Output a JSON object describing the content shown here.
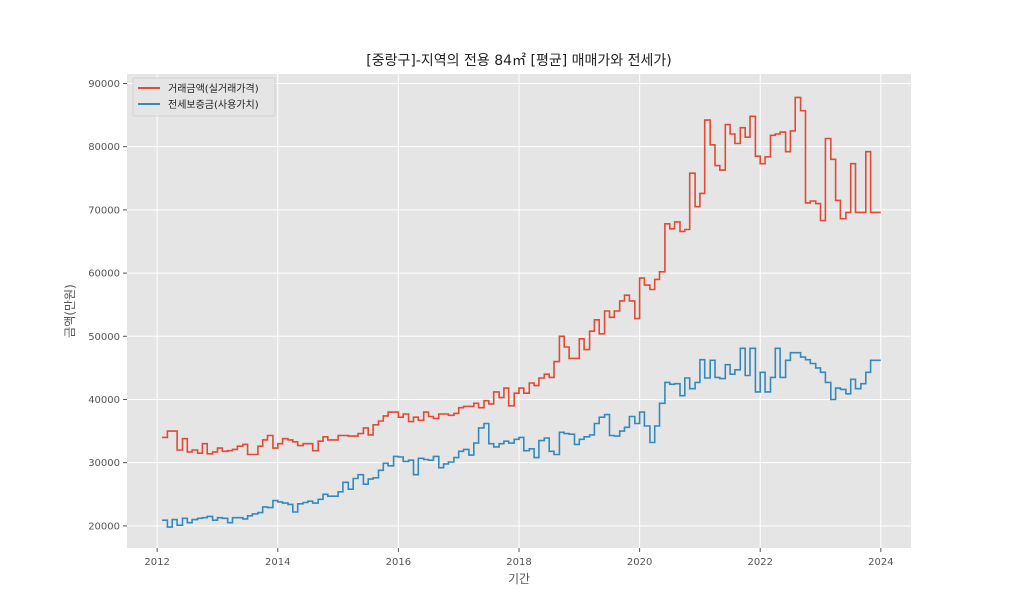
{
  "chart_data": {
    "type": "line",
    "step": true,
    "title": "[중랑구]-지역의 전용 84㎡ [평균] 매매가와 전세가)",
    "xlabel": "기간",
    "ylabel": "금액(만원)",
    "xlim": [
      2011.5,
      2024.5
    ],
    "ylim": [
      16500,
      91500
    ],
    "xticks": [
      2012,
      2014,
      2016,
      2018,
      2020,
      2022,
      2024
    ],
    "xtick_labels": [
      "2012",
      "2014",
      "2016",
      "2018",
      "2020",
      "2022",
      "2024"
    ],
    "yticks": [
      20000,
      30000,
      40000,
      50000,
      60000,
      70000,
      80000,
      90000
    ],
    "ytick_labels": [
      "20000",
      "30000",
      "40000",
      "50000",
      "60000",
      "70000",
      "80000",
      "90000"
    ],
    "grid": true,
    "legend_position": "top-left",
    "series": [
      {
        "name": "거래금액(실거래가격)",
        "color": "#E24A33",
        "points": [
          [
            2012.08,
            34000
          ],
          [
            2012.17,
            35000
          ],
          [
            2012.33,
            32000
          ],
          [
            2012.42,
            33800
          ],
          [
            2012.5,
            31700
          ],
          [
            2012.58,
            32000
          ],
          [
            2012.67,
            31500
          ],
          [
            2012.75,
            33000
          ],
          [
            2012.83,
            31400
          ],
          [
            2012.92,
            31700
          ],
          [
            2013.0,
            32300
          ],
          [
            2013.08,
            31800
          ],
          [
            2013.17,
            31900
          ],
          [
            2013.25,
            32100
          ],
          [
            2013.33,
            32600
          ],
          [
            2013.42,
            32900
          ],
          [
            2013.5,
            31300
          ],
          [
            2013.67,
            32600
          ],
          [
            2013.75,
            33600
          ],
          [
            2013.83,
            34300
          ],
          [
            2013.92,
            32300
          ],
          [
            2014.0,
            33000
          ],
          [
            2014.08,
            33800
          ],
          [
            2014.17,
            33600
          ],
          [
            2014.25,
            33300
          ],
          [
            2014.33,
            32700
          ],
          [
            2014.42,
            33000
          ],
          [
            2014.58,
            31900
          ],
          [
            2014.67,
            33400
          ],
          [
            2014.75,
            34100
          ],
          [
            2014.83,
            33600
          ],
          [
            2015.0,
            34300
          ],
          [
            2015.17,
            34200
          ],
          [
            2015.33,
            34600
          ],
          [
            2015.42,
            35500
          ],
          [
            2015.5,
            34400
          ],
          [
            2015.58,
            36000
          ],
          [
            2015.67,
            36600
          ],
          [
            2015.75,
            37400
          ],
          [
            2015.83,
            38000
          ],
          [
            2016.0,
            37200
          ],
          [
            2016.08,
            37700
          ],
          [
            2016.17,
            36500
          ],
          [
            2016.25,
            37200
          ],
          [
            2016.33,
            36700
          ],
          [
            2016.42,
            38000
          ],
          [
            2016.5,
            37300
          ],
          [
            2016.58,
            37000
          ],
          [
            2016.67,
            37700
          ],
          [
            2016.83,
            37500
          ],
          [
            2016.92,
            37800
          ],
          [
            2017.0,
            38700
          ],
          [
            2017.08,
            38900
          ],
          [
            2017.25,
            39400
          ],
          [
            2017.33,
            38700
          ],
          [
            2017.42,
            39800
          ],
          [
            2017.5,
            39300
          ],
          [
            2017.58,
            41200
          ],
          [
            2017.67,
            40300
          ],
          [
            2017.75,
            41800
          ],
          [
            2017.83,
            39000
          ],
          [
            2017.92,
            41000
          ],
          [
            2018.0,
            41800
          ],
          [
            2018.08,
            41000
          ],
          [
            2018.17,
            42600
          ],
          [
            2018.25,
            42200
          ],
          [
            2018.33,
            43400
          ],
          [
            2018.42,
            44000
          ],
          [
            2018.5,
            43500
          ],
          [
            2018.58,
            46000
          ],
          [
            2018.67,
            50000
          ],
          [
            2018.75,
            48300
          ],
          [
            2018.83,
            46500
          ],
          [
            2019.0,
            49600
          ],
          [
            2019.08,
            47900
          ],
          [
            2019.17,
            50800
          ],
          [
            2019.25,
            52600
          ],
          [
            2019.33,
            50400
          ],
          [
            2019.42,
            54000
          ],
          [
            2019.5,
            53000
          ],
          [
            2019.58,
            54000
          ],
          [
            2019.67,
            55600
          ],
          [
            2019.75,
            56500
          ],
          [
            2019.83,
            55600
          ],
          [
            2019.92,
            52800
          ],
          [
            2020.0,
            59200
          ],
          [
            2020.08,
            58100
          ],
          [
            2020.17,
            57400
          ],
          [
            2020.25,
            59000
          ],
          [
            2020.33,
            60200
          ],
          [
            2020.42,
            67800
          ],
          [
            2020.5,
            67000
          ],
          [
            2020.58,
            68100
          ],
          [
            2020.67,
            66600
          ],
          [
            2020.75,
            66900
          ],
          [
            2020.83,
            75800
          ],
          [
            2020.92,
            70500
          ],
          [
            2021.0,
            72600
          ],
          [
            2021.08,
            84200
          ],
          [
            2021.17,
            80300
          ],
          [
            2021.25,
            77000
          ],
          [
            2021.33,
            76300
          ],
          [
            2021.42,
            83500
          ],
          [
            2021.5,
            82000
          ],
          [
            2021.58,
            80500
          ],
          [
            2021.67,
            83000
          ],
          [
            2021.75,
            81500
          ],
          [
            2021.83,
            84800
          ],
          [
            2021.92,
            78500
          ],
          [
            2022.0,
            77300
          ],
          [
            2022.08,
            78400
          ],
          [
            2022.17,
            81800
          ],
          [
            2022.25,
            82000
          ],
          [
            2022.33,
            82300
          ],
          [
            2022.42,
            79200
          ],
          [
            2022.5,
            82500
          ],
          [
            2022.58,
            87800
          ],
          [
            2022.67,
            85700
          ],
          [
            2022.75,
            71100
          ],
          [
            2022.83,
            71400
          ],
          [
            2022.92,
            71000
          ],
          [
            2023.0,
            68300
          ],
          [
            2023.08,
            81300
          ],
          [
            2023.17,
            78000
          ],
          [
            2023.25,
            71500
          ],
          [
            2023.33,
            68600
          ],
          [
            2023.42,
            69600
          ],
          [
            2023.5,
            77300
          ],
          [
            2023.58,
            69600
          ],
          [
            2023.75,
            79200
          ],
          [
            2023.83,
            69600
          ],
          [
            2023.92,
            69600
          ]
        ]
      },
      {
        "name": "전세보증금(사용가치)",
        "color": "#348ABD",
        "points": [
          [
            2012.08,
            20900
          ],
          [
            2012.17,
            19800
          ],
          [
            2012.25,
            21000
          ],
          [
            2012.33,
            20100
          ],
          [
            2012.42,
            21200
          ],
          [
            2012.5,
            20500
          ],
          [
            2012.58,
            21000
          ],
          [
            2012.67,
            21200
          ],
          [
            2012.75,
            21300
          ],
          [
            2012.83,
            21500
          ],
          [
            2012.92,
            20900
          ],
          [
            2013.0,
            21300
          ],
          [
            2013.08,
            21200
          ],
          [
            2013.17,
            20500
          ],
          [
            2013.25,
            21300
          ],
          [
            2013.42,
            21100
          ],
          [
            2013.5,
            21600
          ],
          [
            2013.58,
            21900
          ],
          [
            2013.67,
            22100
          ],
          [
            2013.75,
            23000
          ],
          [
            2013.83,
            22900
          ],
          [
            2013.92,
            24000
          ],
          [
            2014.0,
            23800
          ],
          [
            2014.08,
            23600
          ],
          [
            2014.17,
            23400
          ],
          [
            2014.25,
            22200
          ],
          [
            2014.33,
            23500
          ],
          [
            2014.42,
            23700
          ],
          [
            2014.5,
            23900
          ],
          [
            2014.58,
            23600
          ],
          [
            2014.67,
            24200
          ],
          [
            2014.75,
            25000
          ],
          [
            2014.83,
            24700
          ],
          [
            2015.0,
            25400
          ],
          [
            2015.08,
            26900
          ],
          [
            2015.17,
            25800
          ],
          [
            2015.25,
            27500
          ],
          [
            2015.33,
            28100
          ],
          [
            2015.42,
            26600
          ],
          [
            2015.5,
            27400
          ],
          [
            2015.58,
            27600
          ],
          [
            2015.67,
            28800
          ],
          [
            2015.75,
            29900
          ],
          [
            2015.83,
            29500
          ],
          [
            2015.92,
            31000
          ],
          [
            2016.0,
            30900
          ],
          [
            2016.08,
            30200
          ],
          [
            2016.17,
            30400
          ],
          [
            2016.25,
            28100
          ],
          [
            2016.33,
            30700
          ],
          [
            2016.42,
            30500
          ],
          [
            2016.5,
            30400
          ],
          [
            2016.58,
            31000
          ],
          [
            2016.67,
            29200
          ],
          [
            2016.75,
            29800
          ],
          [
            2016.83,
            30100
          ],
          [
            2016.92,
            30800
          ],
          [
            2017.0,
            31800
          ],
          [
            2017.08,
            32100
          ],
          [
            2017.17,
            31200
          ],
          [
            2017.25,
            33100
          ],
          [
            2017.33,
            35500
          ],
          [
            2017.42,
            36200
          ],
          [
            2017.5,
            33000
          ],
          [
            2017.58,
            32500
          ],
          [
            2017.67,
            33000
          ],
          [
            2017.75,
            33400
          ],
          [
            2017.83,
            33100
          ],
          [
            2017.92,
            33700
          ],
          [
            2018.0,
            34000
          ],
          [
            2018.08,
            31900
          ],
          [
            2018.17,
            32200
          ],
          [
            2018.25,
            30800
          ],
          [
            2018.33,
            33500
          ],
          [
            2018.42,
            33900
          ],
          [
            2018.5,
            31800
          ],
          [
            2018.58,
            31300
          ],
          [
            2018.67,
            34800
          ],
          [
            2018.75,
            34600
          ],
          [
            2018.83,
            34500
          ],
          [
            2018.92,
            32900
          ],
          [
            2019.0,
            33700
          ],
          [
            2019.08,
            34100
          ],
          [
            2019.17,
            34400
          ],
          [
            2019.25,
            36200
          ],
          [
            2019.33,
            37200
          ],
          [
            2019.42,
            37600
          ],
          [
            2019.5,
            34300
          ],
          [
            2019.58,
            34200
          ],
          [
            2019.67,
            35000
          ],
          [
            2019.75,
            35600
          ],
          [
            2019.83,
            37300
          ],
          [
            2019.92,
            36200
          ],
          [
            2020.0,
            38000
          ],
          [
            2020.08,
            35800
          ],
          [
            2020.17,
            33200
          ],
          [
            2020.25,
            35800
          ],
          [
            2020.33,
            39400
          ],
          [
            2020.42,
            42700
          ],
          [
            2020.5,
            42400
          ],
          [
            2020.58,
            42500
          ],
          [
            2020.67,
            40600
          ],
          [
            2020.75,
            43400
          ],
          [
            2020.83,
            41700
          ],
          [
            2020.92,
            42700
          ],
          [
            2021.0,
            46300
          ],
          [
            2021.08,
            43400
          ],
          [
            2021.17,
            46200
          ],
          [
            2021.25,
            43500
          ],
          [
            2021.33,
            43300
          ],
          [
            2021.42,
            45500
          ],
          [
            2021.5,
            44000
          ],
          [
            2021.58,
            44700
          ],
          [
            2021.67,
            48100
          ],
          [
            2021.75,
            43800
          ],
          [
            2021.83,
            48100
          ],
          [
            2021.92,
            41200
          ],
          [
            2022.0,
            44300
          ],
          [
            2022.08,
            41200
          ],
          [
            2022.17,
            43500
          ],
          [
            2022.25,
            48100
          ],
          [
            2022.33,
            43500
          ],
          [
            2022.42,
            46200
          ],
          [
            2022.5,
            47400
          ],
          [
            2022.67,
            46700
          ],
          [
            2022.75,
            46300
          ],
          [
            2022.83,
            45700
          ],
          [
            2022.92,
            45000
          ],
          [
            2023.0,
            44300
          ],
          [
            2023.08,
            42700
          ],
          [
            2023.17,
            40000
          ],
          [
            2023.25,
            41800
          ],
          [
            2023.33,
            41600
          ],
          [
            2023.42,
            40900
          ],
          [
            2023.5,
            43200
          ],
          [
            2023.58,
            41700
          ],
          [
            2023.67,
            42500
          ],
          [
            2023.75,
            44300
          ],
          [
            2023.83,
            46200
          ],
          [
            2023.92,
            46200
          ]
        ]
      }
    ]
  }
}
